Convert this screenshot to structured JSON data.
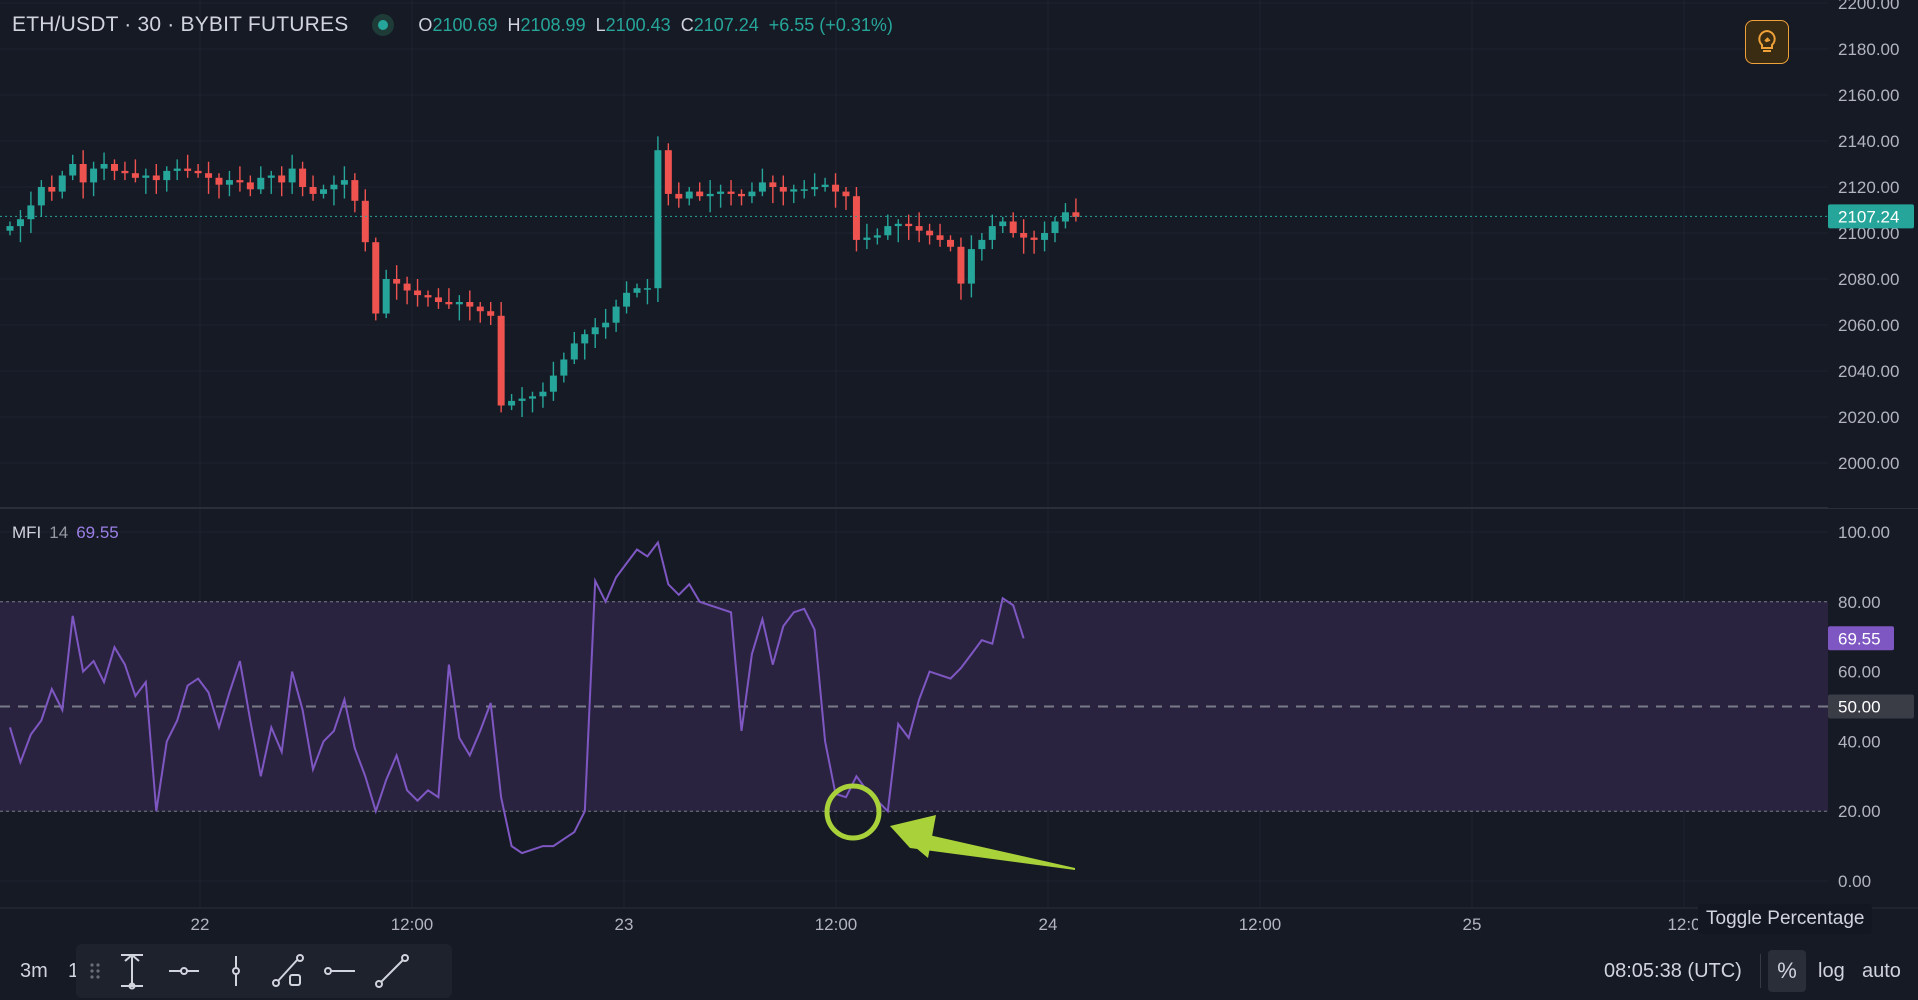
{
  "header": {
    "symbol": "ETH/USDT · 30 · BYBIT FUTURES",
    "ohlc": [
      {
        "k": "O",
        "v": "2100.69"
      },
      {
        "k": "H",
        "v": "2108.99"
      },
      {
        "k": "L",
        "v": "2100.43"
      },
      {
        "k": "C",
        "v": "2107.24"
      }
    ],
    "change": "+6.55 (+0.31%)"
  },
  "price_axis": {
    "ticks": [
      "2200.00",
      "2180.00",
      "2160.00",
      "2140.00",
      "2120.00",
      "2100.00",
      "2080.00",
      "2060.00",
      "2040.00",
      "2020.00",
      "2000.00"
    ],
    "last_price_label": "2107.24"
  },
  "mfi": {
    "name": "MFI",
    "period": "14",
    "value": "69.55",
    "ticks": [
      "100.00",
      "80.00",
      "60.00",
      "40.00",
      "20.00",
      "0.00"
    ],
    "mid_label": "50.00",
    "upper_band": 80,
    "lower_band": 20
  },
  "time_axis": {
    "labels": [
      "22",
      "12:00",
      "23",
      "12:00",
      "24",
      "12:00",
      "25",
      "12:0"
    ]
  },
  "colors": {
    "background": "#161a25",
    "up": "#26a69a",
    "down": "#ef5350",
    "mfi_line": "#7e57c2",
    "mfi_band": "#2a2340",
    "annotation": "#a8d13a",
    "idea_accent": "#f0a23a"
  },
  "chart_data": [
    {
      "type": "candlestick",
      "title": "ETH/USDT · 30 · BYBIT FUTURES",
      "y_range": [
        1990,
        2200
      ],
      "x_labels": [
        "22",
        "12:00",
        "23",
        "12:00",
        "24",
        "12:00",
        "25"
      ],
      "close_series": [
        2103,
        2106,
        2112,
        2120,
        2118,
        2125,
        2130,
        2122,
        2128,
        2130,
        2127,
        2126,
        2124,
        2125,
        2123,
        2127,
        2128,
        2127,
        2126,
        2124,
        2121,
        2123,
        2122,
        2119,
        2124,
        2125,
        2122,
        2128,
        2120,
        2117,
        2119,
        2121,
        2123,
        2114,
        2096,
        2065,
        2080,
        2078,
        2075,
        2073,
        2072,
        2070,
        2069,
        2070,
        2068,
        2066,
        2064,
        2025,
        2027,
        2028,
        2029,
        2031,
        2038,
        2045,
        2052,
        2056,
        2059,
        2061,
        2068,
        2074,
        2076,
        2076,
        2136,
        2117,
        2115,
        2118,
        2116,
        2117,
        2118,
        2117,
        2116,
        2118,
        2122,
        2120,
        2118,
        2119,
        2119,
        2120,
        2121,
        2118,
        2116,
        2097,
        2098,
        2099,
        2103,
        2104,
        2103,
        2101,
        2099,
        2097,
        2094,
        2078,
        2093,
        2097,
        2103,
        2105,
        2100,
        2098,
        2097,
        2100,
        2105,
        2109,
        2107
      ],
      "last_close": 2107.24
    },
    {
      "type": "line",
      "title": "MFI 14",
      "y_range": [
        0,
        100
      ],
      "bands": [
        20,
        50,
        80
      ],
      "series": [
        {
          "name": "MFI 14",
          "values": [
            44,
            34,
            42,
            46,
            55,
            49,
            76,
            60,
            63,
            57,
            67,
            62,
            53,
            57,
            20,
            40,
            46,
            56,
            58,
            54,
            44,
            54,
            63,
            46,
            30,
            44,
            37,
            60,
            49,
            32,
            40,
            43,
            52,
            38,
            30,
            20,
            29,
            36,
            26,
            23,
            26,
            24,
            62,
            41,
            36,
            43,
            51,
            24,
            10,
            8,
            9,
            10,
            10,
            12,
            14,
            20,
            86,
            80,
            87,
            91,
            95,
            93,
            97,
            85,
            82,
            85,
            80,
            79,
            78,
            77,
            43,
            65,
            75,
            62,
            73,
            77,
            78,
            72,
            40,
            25,
            24,
            30,
            26,
            23,
            20,
            45,
            41,
            52,
            60,
            59,
            58,
            61,
            65,
            69,
            68,
            81,
            79,
            69.55
          ]
        }
      ]
    }
  ],
  "annotations": {
    "circle_label": "",
    "arrow_label": ""
  },
  "bottom_toolbar": {
    "timeframe": "3m",
    "timeframe2": "1",
    "tools": [
      "vertical-range-tool",
      "horizontal-ray-tool",
      "vertical-line-tool",
      "path-tool",
      "horizontal-line-tool",
      "trend-line-tool"
    ],
    "clock": "08:05:38 (UTC)",
    "percent_label": "%",
    "log_label": "log",
    "auto_label": "auto",
    "tooltip": "Toggle Percentage"
  }
}
